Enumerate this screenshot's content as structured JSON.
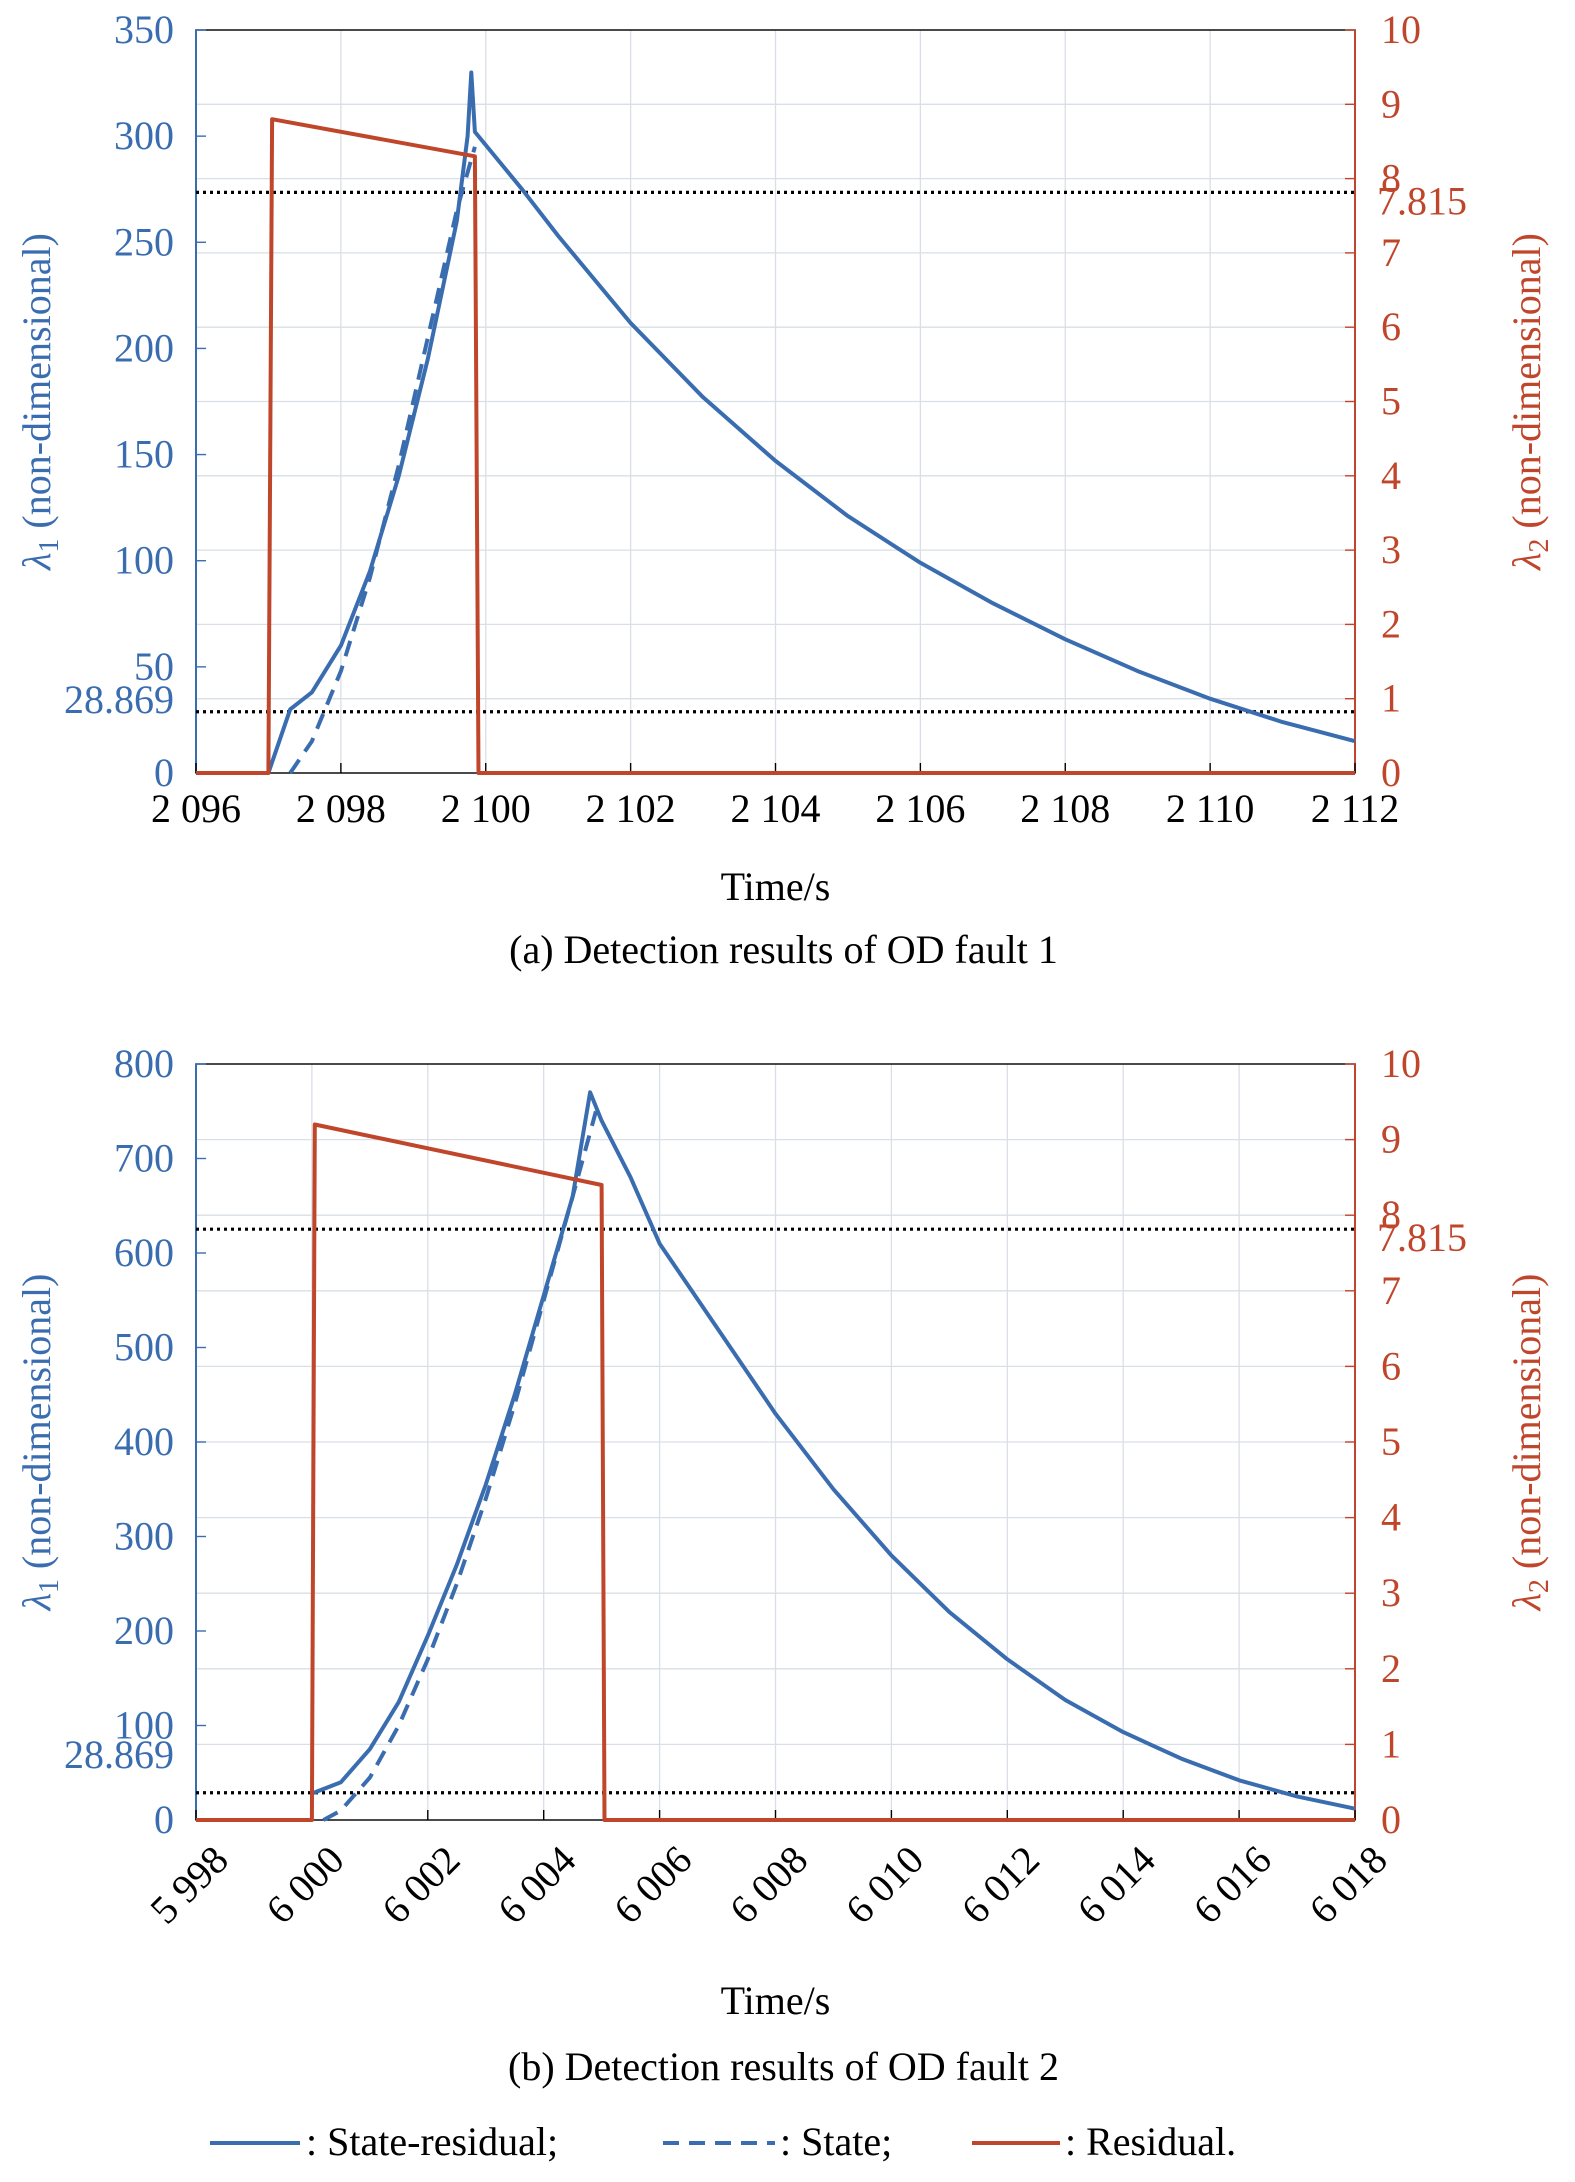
{
  "colors": {
    "left_axis": "#3a6db0",
    "right_axis": "#c0462b",
    "state_residual": "#3a6db0",
    "state": "#3a6db0",
    "residual": "#c0462b",
    "threshold": "#000000",
    "grid": "#d9dfe6"
  },
  "legend": {
    "state_residual": ": State-residual;",
    "state": ": State;",
    "residual": ": Residual."
  },
  "chart_data": [
    {
      "type": "line",
      "caption": "(a) Detection results of OD fault 1",
      "xlabel": "Time/s",
      "ylabel_left": "(non-dimensional)",
      "ylabel_left_symbol": "λ",
      "ylabel_left_sub": "1",
      "ylabel_right": "(non-dimensional)",
      "ylabel_right_symbol": "λ",
      "ylabel_right_sub": "2",
      "xlim": [
        2096,
        2112
      ],
      "ylim_left": [
        0,
        350
      ],
      "ylim_right": [
        0,
        10
      ],
      "x_tick_labels": [
        "2 096",
        "2 098",
        "2 100",
        "2 102",
        "2 104",
        "2 106",
        "2 108",
        "2 110",
        "2 112"
      ],
      "x_ticks": [
        2096,
        2098,
        2100,
        2102,
        2104,
        2106,
        2108,
        2110,
        2112
      ],
      "x_tick_rotation": 0,
      "y_left_ticks": [
        0,
        50,
        100,
        150,
        200,
        250,
        300,
        350
      ],
      "y_left_tick_labels": [
        "0",
        "50",
        "100",
        "150",
        "200",
        "250",
        "300",
        "350"
      ],
      "y_right_ticks": [
        0,
        1,
        2,
        3,
        4,
        5,
        6,
        7,
        8,
        9,
        10
      ],
      "y_right_tick_labels": [
        "0",
        "1",
        "2",
        "3",
        "4",
        "5",
        "6",
        "7",
        "8",
        "9",
        "10"
      ],
      "thresholds": [
        {
          "axis": "left",
          "value": 28.869,
          "label": "28.869"
        },
        {
          "axis": "right",
          "value": 7.815,
          "label": "7.815"
        }
      ],
      "grid": true,
      "series": [
        {
          "name": "State-residual",
          "axis": "left",
          "style": "solid",
          "x": [
            2097.0,
            2097.3,
            2097.6,
            2098.0,
            2098.4,
            2098.8,
            2099.2,
            2099.6,
            2099.75,
            2099.8,
            2099.85,
            2100.5,
            2101,
            2102,
            2103,
            2104,
            2105,
            2106,
            2107,
            2108,
            2109,
            2110,
            2111,
            2112
          ],
          "y": [
            0,
            30,
            38,
            60,
            95,
            140,
            195,
            260,
            300,
            330,
            302,
            275,
            253,
            212,
            177,
            147,
            121,
            99,
            80,
            63,
            48,
            35,
            24,
            15
          ]
        },
        {
          "name": "State",
          "axis": "left",
          "style": "dashed",
          "x": [
            2097.3,
            2097.6,
            2098.0,
            2098.4,
            2098.8,
            2099.2,
            2099.6,
            2099.85
          ],
          "y": [
            0,
            15,
            48,
            92,
            145,
            205,
            265,
            295
          ]
        },
        {
          "name": "Residual",
          "axis": "right",
          "style": "solid",
          "x": [
            2096,
            2097.0,
            2097.05,
            2099.85,
            2099.9,
            2112
          ],
          "y": [
            0,
            0,
            8.8,
            8.3,
            0,
            0
          ]
        }
      ]
    },
    {
      "type": "line",
      "caption": "(b) Detection results of OD fault 2",
      "xlabel": "Time/s",
      "ylabel_left": "(non-dimensional)",
      "ylabel_left_symbol": "λ",
      "ylabel_left_sub": "1",
      "ylabel_right": "(non-dimensional)",
      "ylabel_right_symbol": "λ",
      "ylabel_right_sub": "2",
      "xlim": [
        5998,
        6018
      ],
      "ylim_left": [
        0,
        800
      ],
      "ylim_right": [
        0,
        10
      ],
      "x_tick_labels": [
        "5 998",
        "6 000",
        "6 002",
        "6 004",
        "6 006",
        "6 008",
        "6 010",
        "6 012",
        "6 014",
        "6 016",
        "6 018"
      ],
      "x_ticks": [
        5998,
        6000,
        6002,
        6004,
        6006,
        6008,
        6010,
        6012,
        6014,
        6016,
        6018
      ],
      "x_tick_rotation": -45,
      "y_left_ticks": [
        0,
        100,
        200,
        300,
        400,
        500,
        600,
        700,
        800
      ],
      "y_left_tick_labels": [
        "0",
        "100",
        "200",
        "300",
        "400",
        "500",
        "600",
        "700",
        "800"
      ],
      "y_right_ticks": [
        0,
        1,
        2,
        3,
        4,
        5,
        6,
        7,
        8,
        9,
        10
      ],
      "y_right_tick_labels": [
        "0",
        "1",
        "2",
        "3",
        "4",
        "5",
        "6",
        "7",
        "8",
        "9",
        "10"
      ],
      "thresholds": [
        {
          "axis": "left",
          "value": 28.869,
          "label": "28.869"
        },
        {
          "axis": "right",
          "value": 7.815,
          "label": "7.815"
        }
      ],
      "grid": true,
      "series": [
        {
          "name": "State-residual",
          "axis": "left",
          "style": "solid",
          "x": [
            6000,
            6000.5,
            6001,
            6001.5,
            6002,
            6002.5,
            6003,
            6003.5,
            6004,
            6004.5,
            6004.8,
            6005,
            6005.5,
            6006,
            6007,
            6008,
            6009,
            6010,
            6011,
            6012,
            6013,
            6014,
            6015,
            6016,
            6017,
            6018
          ],
          "y": [
            28,
            40,
            75,
            125,
            195,
            270,
            355,
            450,
            555,
            660,
            770,
            740,
            680,
            610,
            520,
            430,
            350,
            280,
            220,
            170,
            127,
            93,
            65,
            42,
            25,
            12
          ]
        },
        {
          "name": "State",
          "axis": "left",
          "style": "dashed",
          "x": [
            6000.2,
            6000.5,
            6001,
            6001.5,
            6002,
            6002.5,
            6003,
            6003.5,
            6004,
            6004.5,
            6004.9
          ],
          "y": [
            0,
            10,
            45,
            100,
            170,
            250,
            340,
            440,
            550,
            660,
            750
          ]
        },
        {
          "name": "Residual",
          "axis": "right",
          "style": "solid",
          "x": [
            5998,
            6000,
            6000.05,
            6005.0,
            6005.05,
            6018
          ],
          "y": [
            0,
            0,
            9.2,
            8.4,
            0,
            0
          ]
        }
      ]
    }
  ]
}
